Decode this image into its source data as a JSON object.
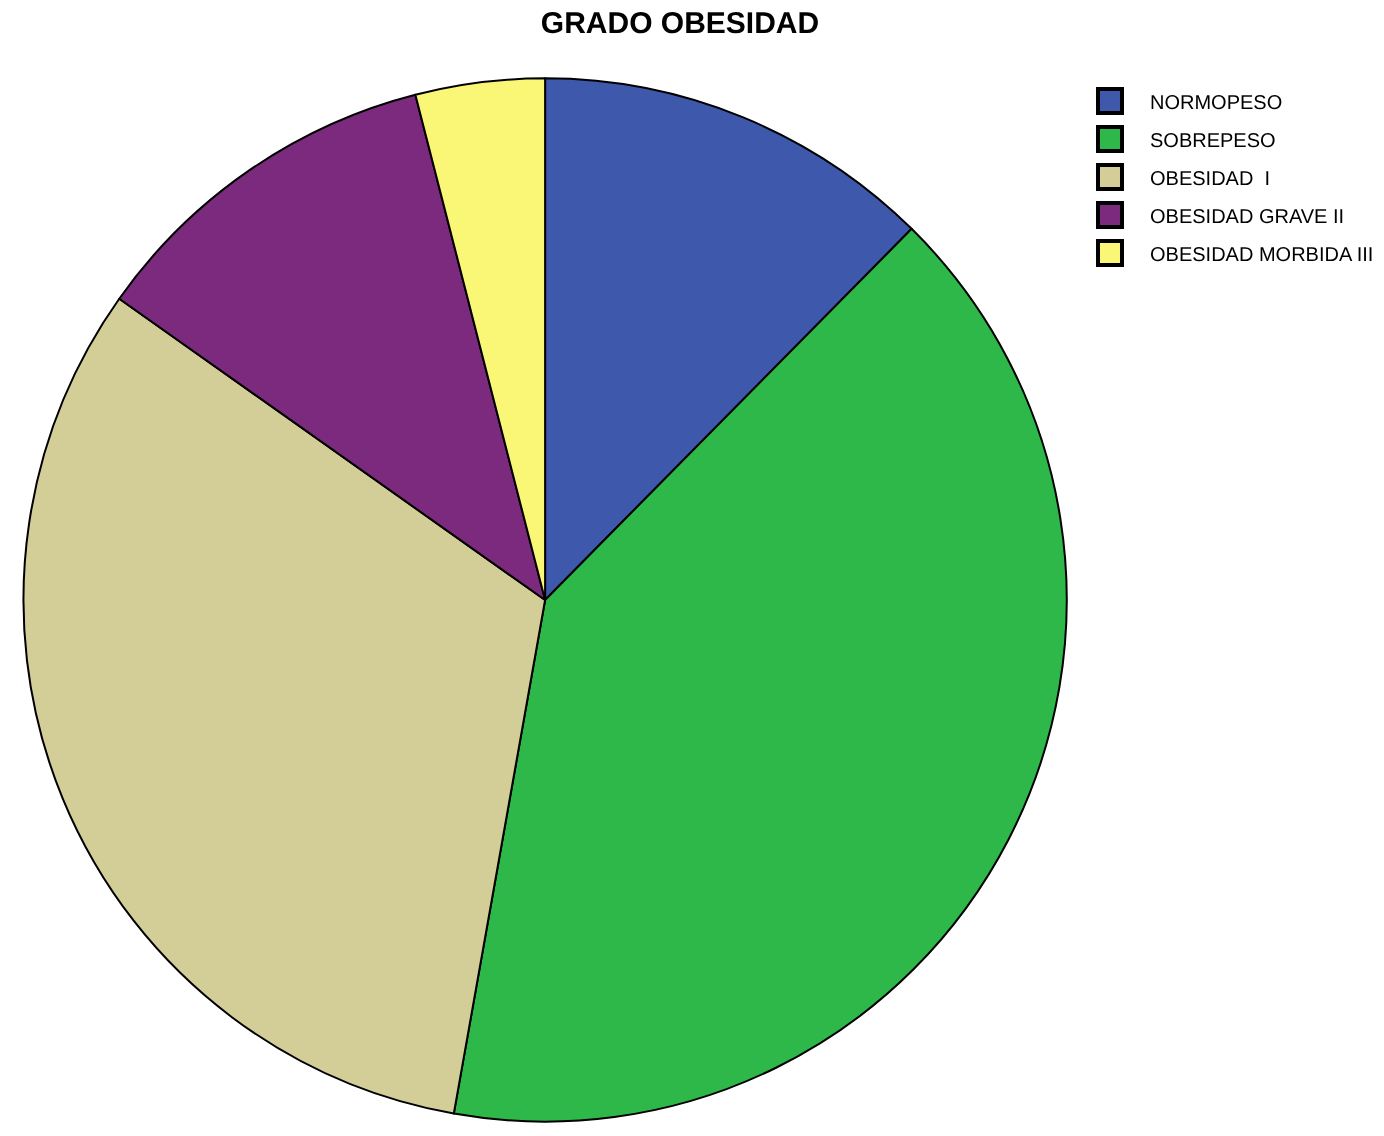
{
  "chart_data": {
    "type": "pie",
    "title": "GRADO OBESIDAD",
    "categories": [
      "NORMOPESO",
      "SOBREPESO",
      "OBESIDAD  I",
      "OBESIDAD GRAVE II",
      "OBESIDAD MORBIDA III"
    ],
    "values": [
      12.4,
      40.4,
      32.0,
      11.2,
      4.0
    ],
    "colors": [
      "#3e58ac",
      "#2eb84a",
      "#d3ce98",
      "#7b2a7d",
      "#fbf776"
    ],
    "legend": "top right"
  }
}
